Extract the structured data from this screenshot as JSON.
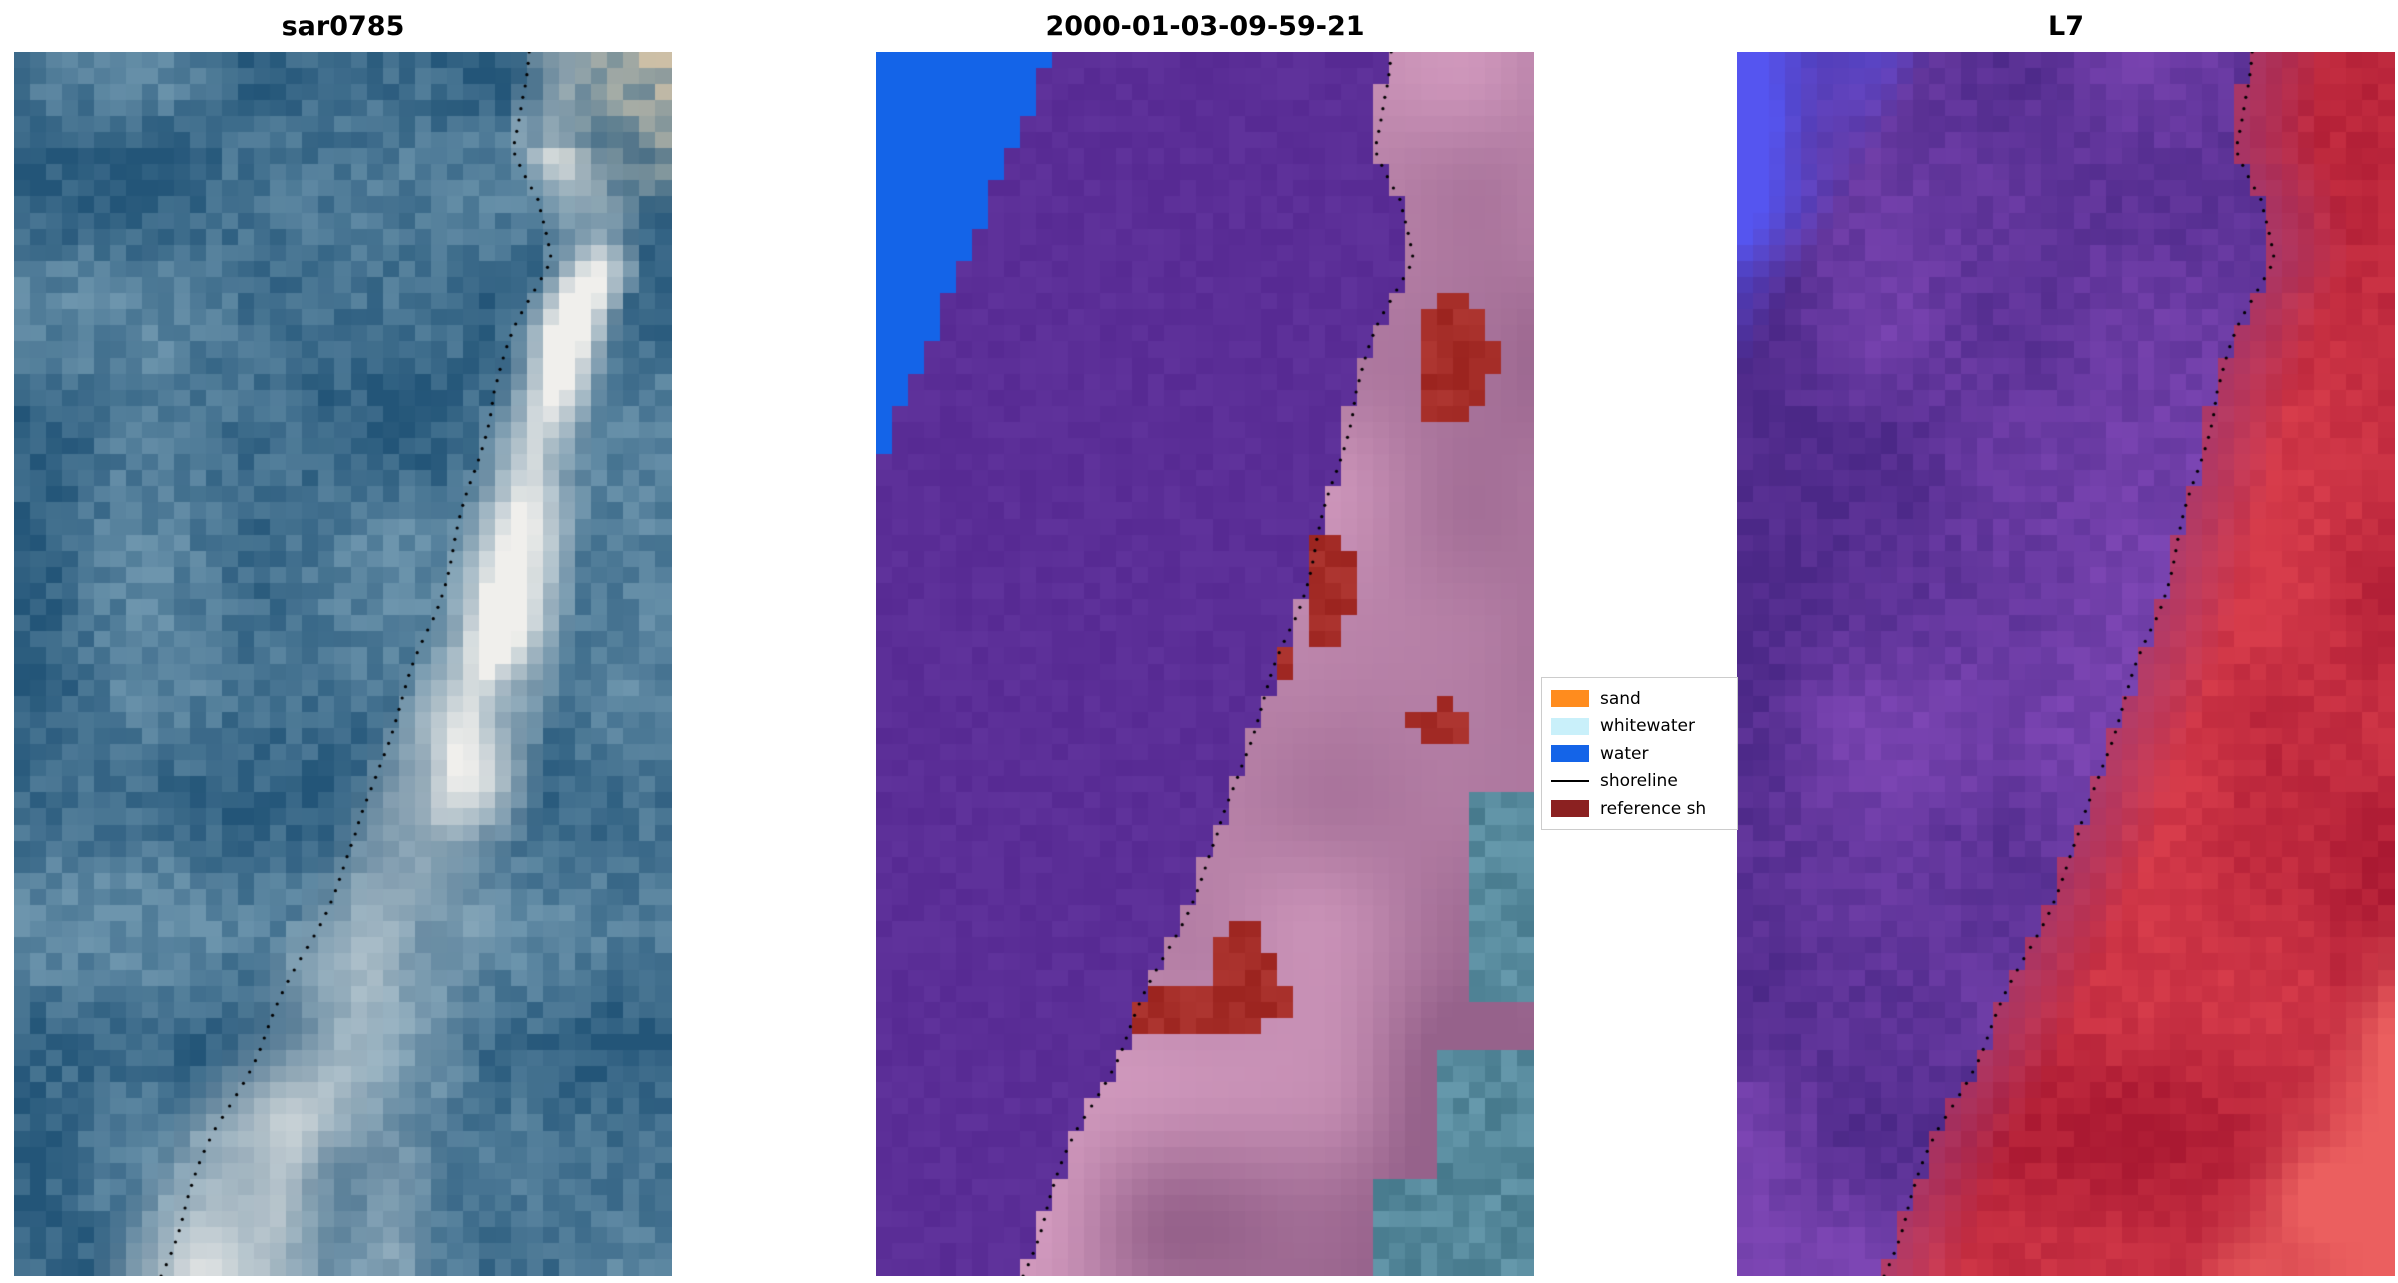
{
  "figure": {
    "background": "#ffffff"
  },
  "legend": {
    "entries": [
      {
        "label": "sand",
        "color": "#ff8c1e",
        "kind": "patch"
      },
      {
        "label": "whitewater",
        "color": "#c9f0fa",
        "kind": "patch"
      },
      {
        "label": "water",
        "color": "#1464e8",
        "kind": "patch"
      },
      {
        "label": "shoreline",
        "color": "#000000",
        "kind": "line"
      },
      {
        "label": "reference sh",
        "color": "#8b2121",
        "kind": "patch"
      }
    ]
  },
  "chart_data": {
    "type": "heatmap",
    "description": "Three-panel coastal remote-sensing figure: SAR backscatter image (sar0785), classified scene dated 2000-01-03-09-59-21 with water/sand classes and reference shoreline patches, and Landsat 7 (L7) false-color image. A dotted black transect marks the detected shoreline on every panel.",
    "panels": [
      {
        "title": "sar0785",
        "kind": "sar"
      },
      {
        "title": "2000-01-03-09-59-21",
        "kind": "classification"
      },
      {
        "title": "L7",
        "kind": "l7"
      }
    ],
    "grid": {
      "cols": 41,
      "rows": 76
    },
    "shoreline": {
      "points": [
        {
          "t": 0.0,
          "x": 0.78
        },
        {
          "t": 0.04,
          "x": 0.765
        },
        {
          "t": 0.08,
          "x": 0.76
        },
        {
          "t": 0.12,
          "x": 0.8
        },
        {
          "t": 0.17,
          "x": 0.815
        },
        {
          "t": 0.22,
          "x": 0.77
        },
        {
          "t": 0.28,
          "x": 0.725
        },
        {
          "t": 0.34,
          "x": 0.7
        },
        {
          "t": 0.4,
          "x": 0.668
        },
        {
          "t": 0.46,
          "x": 0.64
        },
        {
          "t": 0.52,
          "x": 0.6
        },
        {
          "t": 0.58,
          "x": 0.555
        },
        {
          "t": 0.64,
          "x": 0.52
        },
        {
          "t": 0.7,
          "x": 0.47
        },
        {
          "t": 0.76,
          "x": 0.42
        },
        {
          "t": 0.82,
          "x": 0.37
        },
        {
          "t": 0.88,
          "x": 0.31
        },
        {
          "t": 0.94,
          "x": 0.26
        },
        {
          "t": 1.0,
          "x": 0.22
        }
      ]
    },
    "palettes": {
      "sar": {
        "seaDark": "#235578",
        "seaLight": "#6d95ad",
        "band": "#f0efec",
        "tan": "#cdbfa6"
      },
      "classification": {
        "purple": "#5b2e97",
        "blue": "#1464e8",
        "mauveDark": "#96628b",
        "mauveLight": "#d49cc0",
        "red": "#a52d28",
        "teal": "#46798c"
      },
      "l7": {
        "purpleDark": "#4b2887",
        "purpleLight": "#7d46b4",
        "blue": "#5555f0",
        "redDeep": "#aa1932",
        "redLight": "#d73c4b",
        "pink": "#eb5f5f",
        "mauve": "#a03c78"
      }
    }
  }
}
